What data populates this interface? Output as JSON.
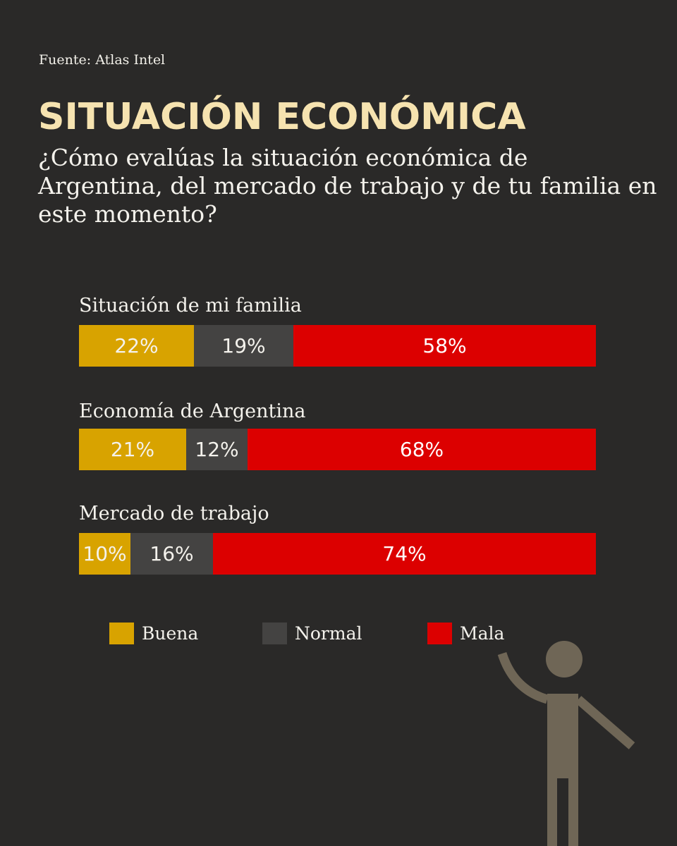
{
  "source": "Fuente: Atlas Intel",
  "title": "SITUACIÓN ECONÓMICA",
  "subtitle": "¿Cómo evalúas la situación económica de Argentina, del mercado de trabajo y de tu familia en este momento?",
  "colors": {
    "background": "#2a2928",
    "title": "#f6e3b0",
    "buena": "#d8a300",
    "normal": "#444342",
    "mala": "#dc0000",
    "figure": "#6f6656"
  },
  "icon": "raised-hand-person-icon",
  "chart_data": {
    "type": "bar",
    "orientation": "horizontal",
    "stacked": true,
    "categories": [
      "Situación de mi familia",
      "Economía de Argentina",
      "Mercado de trabajo"
    ],
    "series": [
      {
        "name": "Buena",
        "color": "#d8a300",
        "values": [
          22,
          21,
          10
        ],
        "labels": [
          "22%",
          "21%",
          "10%"
        ]
      },
      {
        "name": "Normal",
        "color": "#444342",
        "values": [
          19,
          12,
          16
        ],
        "labels": [
          "19%",
          "12%",
          "16%"
        ]
      },
      {
        "name": "Mala",
        "color": "#dc0000",
        "values": [
          58,
          68,
          74
        ],
        "labels": [
          "58%",
          "68%",
          "74%"
        ]
      }
    ],
    "legend": {
      "position": "bottom",
      "entries": [
        "Buena",
        "Normal",
        "Mala"
      ]
    }
  }
}
